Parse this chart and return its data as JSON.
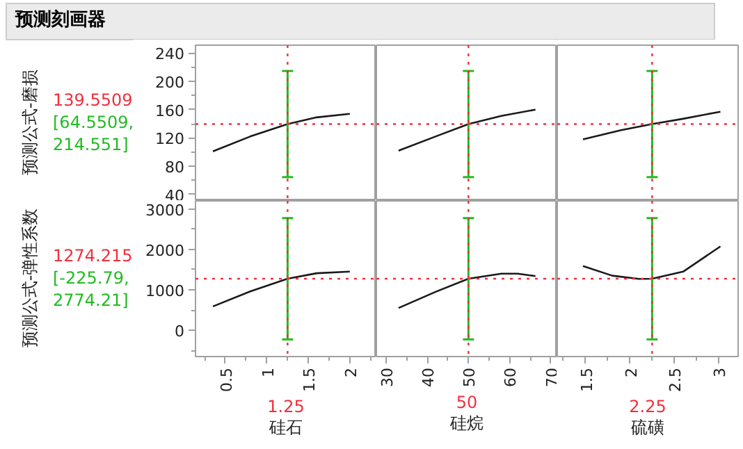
{
  "chart_data": [
    {
      "type": "line",
      "title": "预测刻画器",
      "ylabel": "预测公式-磨损",
      "annotations": [
        "139.5509",
        "[64.5509, 214.551]"
      ],
      "color": "#1a1a1a",
      "x": [
        0.35,
        0.8,
        1.25,
        1.6,
        2.0
      ],
      "values": [
        101,
        122,
        139.5509,
        149,
        154
      ],
      "errors": [
        null,
        null,
        [
          64.5509,
          214.551
        ],
        null,
        null
      ],
      "ref_lines": [
        {
          "axis": "x",
          "value": 1.25,
          "color": "#f0303c",
          "line_style": "dotted"
        },
        {
          "axis": "y",
          "value": 139.5509,
          "color": "#f0303c",
          "line_style": "dotted"
        }
      ],
      "xlim": [
        0.14,
        2.32
      ],
      "ylim": [
        31,
        251
      ],
      "yticks": [
        40,
        {
          "value": 60,
          "label": null
        },
        80,
        {
          "value": 100,
          "label": null
        },
        120,
        {
          "value": 140,
          "label": null
        },
        160,
        {
          "value": 180,
          "label": null
        },
        200,
        {
          "value": 220,
          "label": null
        },
        240
      ],
      "tick_labels": "y"
    },
    {
      "type": "line",
      "color": "#1a1a1a",
      "x": [
        33,
        42,
        50,
        58,
        66.3
      ],
      "values": [
        102,
        122,
        139.5509,
        151,
        160
      ],
      "errors": [
        null,
        null,
        [
          64.5509,
          214.551
        ],
        null,
        null
      ],
      "ref_lines": [
        {
          "axis": "x",
          "value": 50,
          "color": "#f0303c",
          "line_style": "dotted"
        },
        {
          "axis": "y",
          "value": 139.5509,
          "color": "#f0303c",
          "line_style": "dotted"
        }
      ],
      "xlim": [
        27.6,
        71.6
      ],
      "ylim": [
        31,
        251
      ],
      "tick_labels": false
    },
    {
      "type": "line",
      "color": "#1a1a1a",
      "x": [
        1.47,
        1.9,
        2.25,
        2.6,
        3.02
      ],
      "values": [
        118,
        131,
        139.5509,
        147,
        157
      ],
      "errors": [
        null,
        null,
        [
          64.5509,
          214.551
        ],
        null,
        null
      ],
      "ref_lines": [
        {
          "axis": "x",
          "value": 2.25,
          "color": "#f0303c",
          "line_style": "dotted"
        },
        {
          "axis": "y",
          "value": 139.5509,
          "color": "#f0303c",
          "line_style": "dotted"
        }
      ],
      "xlim": [
        1.18,
        3.22
      ],
      "ylim": [
        31,
        251
      ],
      "tick_labels": false
    },
    {
      "type": "line",
      "ylabel": "预测公式-弹性系数",
      "xlabel": "硅石",
      "annotations": [
        "1274.215",
        "[-225.79, 2774.21]",
        "1.25"
      ],
      "color": "#1a1a1a",
      "x": [
        0.35,
        0.8,
        1.25,
        1.6,
        2.0
      ],
      "values": [
        590,
        960,
        1274.215,
        1410,
        1450
      ],
      "errors": [
        null,
        null,
        [
          -225.79,
          2774.21
        ],
        null,
        null
      ],
      "ref_lines": [
        {
          "axis": "x",
          "value": 1.25,
          "color": "#f0303c",
          "line_style": "dotted"
        },
        {
          "axis": "y",
          "value": 1274.215,
          "color": "#f0303c",
          "line_style": "dotted"
        }
      ],
      "xlim": [
        0.14,
        2.32
      ],
      "ylim": [
        -650,
        3200
      ],
      "xticks": [
        {
          "value": 0.25,
          "label": null
        },
        0.5,
        {
          "value": 0.75,
          "label": null
        },
        1,
        {
          "value": 1.25,
          "label": null
        },
        1.5,
        {
          "value": 1.75,
          "label": null
        },
        2,
        {
          "value": 2.25,
          "label": null
        }
      ],
      "yticks": [
        {
          "value": -500,
          "label": null
        },
        0,
        {
          "value": 500,
          "label": null
        },
        1000,
        {
          "value": 1500,
          "label": null
        },
        2000,
        {
          "value": 2500,
          "label": null
        },
        3000
      ]
    },
    {
      "type": "line",
      "xlabel": "硅烷",
      "annotations": [
        "50"
      ],
      "color": "#1a1a1a",
      "x": [
        33,
        42,
        50,
        58,
        62,
        66.3
      ],
      "values": [
        550,
        950,
        1274.215,
        1400,
        1400,
        1340
      ],
      "errors": [
        null,
        null,
        [
          -225.79,
          2774.21
        ],
        null,
        null,
        null
      ],
      "ref_lines": [
        {
          "axis": "x",
          "value": 50,
          "color": "#f0303c",
          "line_style": "dotted"
        },
        {
          "axis": "y",
          "value": 1274.215,
          "color": "#f0303c",
          "line_style": "dotted"
        }
      ],
      "xlim": [
        27.6,
        71.6
      ],
      "ylim": [
        -650,
        3200
      ],
      "xticks": [
        30,
        {
          "value": 35,
          "label": null
        },
        40,
        {
          "value": 45,
          "label": null
        },
        50,
        {
          "value": 55,
          "label": null
        },
        60,
        {
          "value": 65,
          "label": null
        },
        70
      ],
      "tick_labels": "x"
    },
    {
      "type": "line",
      "xlabel": "硫磺",
      "annotations": [
        "2.25"
      ],
      "color": "#1a1a1a",
      "x": [
        1.47,
        1.8,
        2.1,
        2.25,
        2.6,
        3.02
      ],
      "values": [
        1590,
        1350,
        1270,
        1274.215,
        1450,
        2074
      ],
      "errors": [
        null,
        null,
        null,
        [
          -225.79,
          2774.21
        ],
        null,
        null
      ],
      "ref_lines": [
        {
          "axis": "x",
          "value": 2.25,
          "color": "#f0303c",
          "line_style": "dotted"
        },
        {
          "axis": "y",
          "value": 1274.215,
          "color": "#f0303c",
          "line_style": "dotted"
        }
      ],
      "xlim": [
        1.18,
        3.22
      ],
      "ylim": [
        -650,
        3200
      ],
      "xticks": [
        {
          "value": 1.25,
          "label": null
        },
        1.5,
        {
          "value": 1.75,
          "label": null
        },
        2,
        {
          "value": 2.25,
          "label": null
        },
        2.5,
        {
          "value": 2.75,
          "label": null
        },
        3
      ],
      "tick_labels": "x"
    }
  ]
}
